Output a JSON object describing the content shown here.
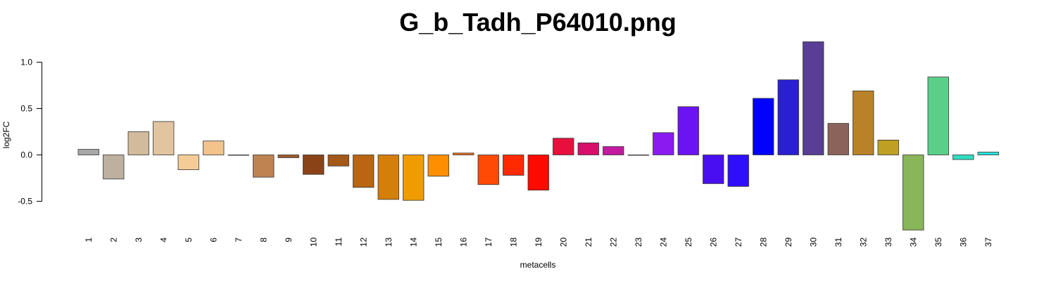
{
  "chart_data": {
    "type": "bar",
    "title": "G_b_Tadh_P64010.png",
    "xlabel": "metacells",
    "ylabel": "log2FC",
    "ylim": [
      -0.8,
      1.22
    ],
    "yticks": [
      -0.5,
      0.0,
      0.5,
      1.0
    ],
    "ytick_labels": [
      "-0.5",
      "0.0",
      "0.5",
      "1.0"
    ],
    "grid": false,
    "categories": [
      "1",
      "2",
      "3",
      "4",
      "5",
      "6",
      "7",
      "8",
      "9",
      "10",
      "11",
      "12",
      "13",
      "14",
      "15",
      "16",
      "17",
      "18",
      "19",
      "20",
      "21",
      "22",
      "23",
      "24",
      "25",
      "26",
      "27",
      "28",
      "29",
      "30",
      "31",
      "32",
      "33",
      "34",
      "35",
      "36",
      "37"
    ],
    "values": [
      0.06,
      -0.26,
      0.25,
      0.36,
      -0.16,
      0.15,
      0.0,
      -0.24,
      -0.03,
      -0.21,
      -0.12,
      -0.35,
      -0.48,
      -0.49,
      -0.23,
      0.02,
      -0.32,
      -0.22,
      -0.38,
      0.18,
      0.13,
      0.09,
      0.0,
      0.24,
      0.52,
      -0.31,
      -0.34,
      0.61,
      0.81,
      1.22,
      0.34,
      0.69,
      0.16,
      -0.81,
      0.84,
      -0.05,
      0.03
    ],
    "colors": [
      "#a8a8a8",
      "#bdb09f",
      "#d1bb9c",
      "#e2c49f",
      "#f5cc97",
      "#f3c38c",
      "#f0b980",
      "#bf8352",
      "#a05a26",
      "#8a4316",
      "#a35817",
      "#ba6511",
      "#d47f0a",
      "#f09c00",
      "#ff8f00",
      "#f46e14",
      "#ff4a05",
      "#ff2a00",
      "#ff0a00",
      "#e80f3c",
      "#d90e6b",
      "#c21a9e",
      "#a118c4",
      "#8a1af0",
      "#6c13f4",
      "#4a0ff0",
      "#2f0ffa",
      "#0000ff",
      "#2b1fd2",
      "#583e94",
      "#8c635a",
      "#b98229",
      "#bfa023",
      "#88b659",
      "#5bcf8a",
      "#30dec0",
      "#27e0da"
    ]
  }
}
